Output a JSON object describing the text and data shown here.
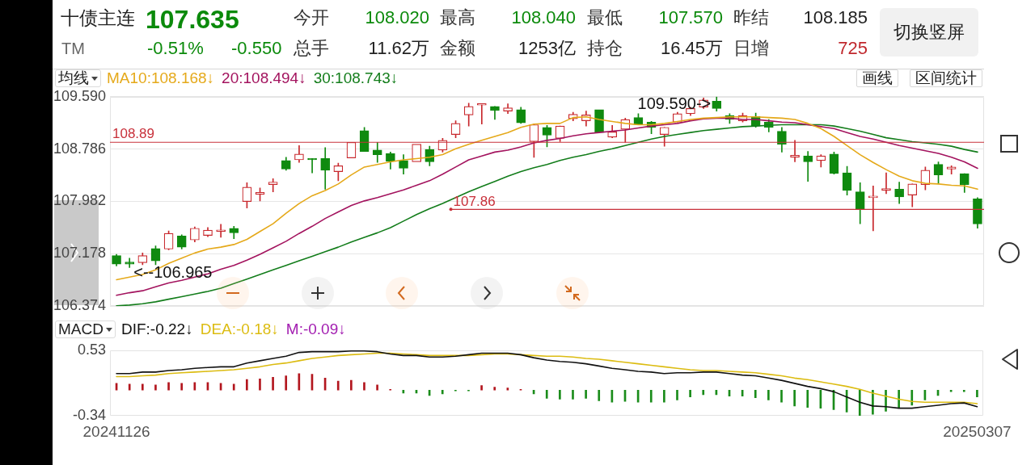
{
  "chart_data": [
    {
      "type": "other",
      "title": "十债主连",
      "annotations": [
        "107.635",
        "TM",
        "-0.51%",
        "-0.550",
        "今开",
        "108.020",
        "最高",
        "108.040",
        "最低",
        "107.570",
        "昨结",
        "108.185",
        "总手",
        "11.62万",
        "金额",
        "1253亿",
        "持仓",
        "16.45万",
        "日增",
        "725",
        "切换竖屏"
      ]
    },
    {
      "type": "candlestick",
      "categories": [
        "20241126",
        null,
        null,
        null,
        null,
        null,
        null,
        null,
        null,
        null,
        null,
        null,
        null,
        null,
        null,
        null,
        null,
        null,
        null,
        null,
        null,
        null,
        null,
        null,
        null,
        null,
        null,
        null,
        null,
        null,
        null,
        null,
        null,
        null,
        null,
        null,
        null,
        null,
        null,
        null,
        null,
        null,
        null,
        null,
        null,
        null,
        null,
        null,
        null,
        null,
        null,
        null,
        null,
        null,
        null,
        null,
        null,
        null,
        null,
        null,
        null,
        null,
        null,
        null,
        null,
        null,
        "20250307"
      ],
      "ohlc": [
        [
          107.15,
          107.17,
          106.99,
          107.02
        ],
        [
          107.05,
          107.11,
          106.965,
          107.02
        ],
        [
          107.04,
          107.19,
          107.01,
          107.15
        ],
        [
          107.26,
          107.3,
          107.01,
          107.07
        ],
        [
          107.25,
          107.53,
          107.24,
          107.49
        ],
        [
          107.45,
          107.47,
          107.25,
          107.28
        ],
        [
          107.39,
          107.59,
          107.36,
          107.57
        ],
        [
          107.46,
          107.58,
          107.44,
          107.54
        ],
        [
          107.52,
          107.63,
          107.43,
          107.53
        ],
        [
          107.57,
          107.6,
          107.41,
          107.5
        ],
        [
          107.98,
          108.27,
          107.88,
          108.2
        ],
        [
          108.09,
          108.19,
          107.99,
          108.12
        ],
        [
          108.24,
          108.33,
          108.13,
          108.28
        ],
        [
          108.61,
          108.66,
          108.46,
          108.48
        ],
        [
          108.62,
          108.84,
          108.58,
          108.71
        ],
        [
          108.64,
          108.64,
          108.42,
          108.62
        ],
        [
          108.64,
          108.81,
          108.17,
          108.46
        ],
        [
          108.44,
          108.57,
          108.3,
          108.53
        ],
        [
          108.65,
          108.89,
          108.65,
          108.89
        ],
        [
          109.07,
          109.12,
          108.75,
          108.75
        ],
        [
          108.77,
          108.89,
          108.58,
          108.7
        ],
        [
          108.72,
          108.74,
          108.48,
          108.6
        ],
        [
          108.61,
          108.7,
          108.4,
          108.49
        ],
        [
          108.59,
          108.86,
          108.59,
          108.86
        ],
        [
          108.78,
          108.83,
          108.53,
          108.59
        ],
        [
          108.77,
          108.95,
          108.74,
          108.92
        ],
        [
          109.01,
          109.22,
          108.96,
          109.18
        ],
        [
          109.31,
          109.49,
          109.14,
          109.44
        ],
        [
          109.46,
          109.47,
          109.17,
          109.47
        ],
        [
          109.44,
          109.44,
          109.24,
          109.38
        ],
        [
          109.37,
          109.48,
          109.33,
          109.42
        ],
        [
          109.39,
          109.43,
          109.18,
          109.19
        ],
        [
          108.9,
          109.17,
          108.66,
          109.16
        ],
        [
          109.12,
          109.15,
          108.82,
          109.0
        ],
        [
          108.95,
          109.14,
          108.9,
          109.14
        ],
        [
          109.25,
          109.35,
          109.22,
          109.32
        ],
        [
          109.22,
          109.37,
          109.14,
          109.31
        ],
        [
          109.39,
          109.39,
          109.04,
          109.04
        ],
        [
          108.97,
          109.15,
          108.96,
          109.05
        ],
        [
          109.09,
          109.26,
          108.89,
          109.24
        ],
        [
          109.27,
          109.33,
          109.16,
          109.16
        ],
        [
          109.2,
          109.21,
          109.02,
          109.12
        ],
        [
          109.01,
          109.12,
          108.83,
          109.12
        ],
        [
          109.2,
          109.35,
          109.2,
          109.33
        ],
        [
          109.33,
          109.43,
          109.3,
          109.41
        ],
        [
          109.43,
          109.57,
          109.41,
          109.54
        ],
        [
          109.52,
          109.59,
          109.37,
          109.41
        ],
        [
          109.3,
          109.33,
          109.18,
          109.24
        ],
        [
          109.22,
          109.34,
          109.2,
          109.3
        ],
        [
          109.29,
          109.34,
          109.12,
          109.14
        ],
        [
          109.2,
          109.24,
          109.05,
          109.12
        ],
        [
          109.06,
          109.12,
          108.74,
          108.86
        ],
        [
          108.66,
          108.92,
          108.59,
          108.69
        ],
        [
          108.68,
          108.75,
          108.29,
          108.59
        ],
        [
          108.61,
          108.7,
          108.51,
          108.68
        ],
        [
          108.71,
          108.74,
          108.4,
          108.41
        ],
        [
          108.42,
          108.52,
          108.08,
          108.15
        ],
        [
          108.13,
          108.27,
          107.64,
          107.86
        ],
        [
          108.04,
          108.22,
          107.53,
          108.06
        ],
        [
          108.15,
          108.42,
          108.1,
          108.18
        ],
        [
          108.17,
          108.28,
          107.95,
          108.05
        ],
        [
          108.08,
          108.25,
          107.9,
          108.25
        ],
        [
          108.24,
          108.51,
          108.16,
          108.46
        ],
        [
          108.55,
          108.59,
          108.25,
          108.39
        ],
        [
          108.48,
          108.53,
          108.4,
          108.51
        ],
        [
          108.41,
          108.41,
          108.12,
          108.24
        ],
        [
          108.02,
          108.04,
          107.57,
          107.635
        ]
      ],
      "colors": [
        "#0f8a0f",
        "#0f8a0f",
        "#c8282d",
        "#0f8a0f",
        "#c8282d",
        "#0f8a0f",
        "#c8282d",
        "#c8282d",
        "#c8282d",
        "#0f8a0f",
        "#c8282d",
        "#c8282d",
        "#c8282d",
        "#0f8a0f",
        "#c8282d",
        "#0f8a0f",
        "#0f8a0f",
        "#c8282d",
        "#c8282d",
        "#0f8a0f",
        "#0f8a0f",
        "#0f8a0f",
        "#0f8a0f",
        "#c8282d",
        "#0f8a0f",
        "#c8282d",
        "#c8282d",
        "#c8282d",
        "#c8282d",
        "#0f8a0f",
        "#c8282d",
        "#0f8a0f",
        "#c8282d",
        "#0f8a0f",
        "#c8282d",
        "#c8282d",
        "#c8282d",
        "#0f8a0f",
        "#c8282d",
        "#c8282d",
        "#0f8a0f",
        "#0f8a0f",
        "#c8282d",
        "#c8282d",
        "#c8282d",
        "#c8282d",
        "#0f8a0f",
        "#0f8a0f",
        "#c8282d",
        "#0f8a0f",
        "#0f8a0f",
        "#0f8a0f",
        "#c8282d",
        "#0f8a0f",
        "#c8282d",
        "#0f8a0f",
        "#0f8a0f",
        "#0f8a0f",
        "#c8282d",
        "#c8282d",
        "#0f8a0f",
        "#c8282d",
        "#c8282d",
        "#0f8a0f",
        "#c8282d",
        "#0f8a0f",
        "#0f8a0f"
      ],
      "series": [
        {
          "name": "MA10:108.168↓",
          "type": "line",
          "color": "#e5a91a",
          "values": [
            106.78,
            106.82,
            106.86,
            106.93,
            107.03,
            107.11,
            107.19,
            107.25,
            107.28,
            107.32,
            107.4,
            107.52,
            107.64,
            107.8,
            107.95,
            108.07,
            108.15,
            108.25,
            108.39,
            108.51,
            108.55,
            108.59,
            108.62,
            108.64,
            108.66,
            108.7,
            108.79,
            108.86,
            108.92,
            108.98,
            109.04,
            109.12,
            109.17,
            109.18,
            109.18,
            109.27,
            109.28,
            109.24,
            109.21,
            109.18,
            109.16,
            109.16,
            109.18,
            109.21,
            109.24,
            109.26,
            109.27,
            109.28,
            109.28,
            109.28,
            109.27,
            109.26,
            109.24,
            109.18,
            109.1,
            108.98,
            108.84,
            108.7,
            108.58,
            108.47,
            108.37,
            108.3,
            108.26,
            108.25,
            108.23,
            108.22,
            108.17
          ]
        },
        {
          "name": "20:108.494↓",
          "type": "line",
          "color": "#a3135e",
          "values": [
            106.54,
            106.58,
            106.61,
            106.67,
            106.73,
            106.77,
            106.82,
            106.87,
            106.94,
            107.0,
            107.08,
            107.17,
            107.27,
            107.37,
            107.49,
            107.6,
            107.72,
            107.82,
            107.92,
            107.99,
            108.04,
            108.1,
            108.16,
            108.23,
            108.3,
            108.4,
            108.51,
            108.62,
            108.68,
            108.74,
            108.77,
            108.82,
            108.88,
            108.92,
            108.95,
            108.99,
            109.02,
            109.04,
            109.06,
            109.08,
            109.11,
            109.14,
            109.16,
            109.18,
            109.22,
            109.25,
            109.26,
            109.26,
            109.24,
            109.24,
            109.22,
            109.2,
            109.19,
            109.16,
            109.13,
            109.1,
            109.04,
            108.98,
            108.94,
            108.89,
            108.84,
            108.8,
            108.76,
            108.72,
            108.66,
            108.59,
            108.49
          ]
        },
        {
          "name": "30:108.743↓",
          "type": "line",
          "color": "#137d1b",
          "values": [
            106.38,
            106.39,
            106.41,
            106.44,
            106.48,
            106.52,
            106.56,
            106.6,
            106.65,
            106.72,
            106.79,
            106.86,
            106.93,
            107.0,
            107.07,
            107.14,
            107.21,
            107.28,
            107.36,
            107.43,
            107.5,
            107.58,
            107.68,
            107.78,
            107.87,
            107.95,
            108.04,
            108.13,
            108.21,
            108.29,
            108.37,
            108.44,
            108.5,
            108.55,
            108.61,
            108.66,
            108.7,
            108.75,
            108.79,
            108.84,
            108.89,
            108.94,
            108.98,
            109.01,
            109.04,
            109.07,
            109.09,
            109.11,
            109.13,
            109.14,
            109.15,
            109.16,
            109.16,
            109.16,
            109.16,
            109.14,
            109.1,
            109.06,
            109.01,
            108.96,
            108.93,
            108.9,
            108.88,
            108.86,
            108.83,
            108.78,
            108.74
          ]
        }
      ],
      "legend_title": "均线",
      "legend": "top left",
      "ylim": [
        106.374,
        109.59
      ],
      "yticks": [
        106.374,
        107.178,
        107.982,
        108.786,
        {
          "value": 109.59,
          "label": "109.590"
        }
      ],
      "grid": "y",
      "tick_labels": "y",
      "marker": "none",
      "ref_lines": [
        {
          "axis": "y",
          "value": 108.89,
          "label": "108.89",
          "color": "#c8303a"
        },
        {
          "axis": "y",
          "value": 107.86,
          "label": "107.86",
          "color": "#c8303a"
        }
      ],
      "annotations": [
        "画线",
        "区间统计",
        "109.590->",
        "<--106.965"
      ]
    },
    {
      "type": "bar",
      "categories": [
        "20241126",
        null,
        null,
        null,
        null,
        null,
        null,
        null,
        null,
        null,
        null,
        null,
        null,
        null,
        null,
        null,
        null,
        null,
        null,
        null,
        null,
        null,
        null,
        null,
        null,
        null,
        null,
        null,
        null,
        null,
        null,
        null,
        null,
        null,
        null,
        null,
        null,
        null,
        null,
        null,
        null,
        null,
        null,
        null,
        null,
        null,
        null,
        null,
        null,
        null,
        null,
        null,
        null,
        null,
        null,
        null,
        null,
        null,
        null,
        null,
        null,
        null,
        null,
        null,
        null,
        null,
        "20250307"
      ],
      "series": [
        {
          "colors": [
            "#b3161e",
            "#b3161e",
            "#b3161e",
            "#b3161e",
            "#b3161e",
            "#b3161e",
            "#b3161e",
            "#b3161e",
            "#b3161e",
            "#b3161e",
            "#b3161e",
            "#b3161e",
            "#b3161e",
            "#b3161e",
            "#b3161e",
            "#b3161e",
            "#b3161e",
            "#b3161e",
            "#b3161e",
            "#b3161e",
            "#b3161e",
            "#b3161e",
            "#1a8c1a",
            "#1a8c1a",
            "#1a8c1a",
            "#1a8c1a",
            "#1a8c1a",
            "#1a8c1a",
            "#b3161e",
            "#b3161e",
            "#b3161e",
            "#b3161e",
            "#1a8c1a",
            "#1a8c1a",
            "#1a8c1a",
            "#1a8c1a",
            "#1a8c1a",
            "#1a8c1a",
            "#1a8c1a",
            "#1a8c1a",
            "#1a8c1a",
            "#1a8c1a",
            "#1a8c1a",
            "#1a8c1a",
            "#1a8c1a",
            "#1a8c1a",
            "#1a8c1a",
            "#1a8c1a",
            "#1a8c1a",
            "#1a8c1a",
            "#1a8c1a",
            "#1a8c1a",
            "#1a8c1a",
            "#1a8c1a",
            "#1a8c1a",
            "#1a8c1a",
            "#1a8c1a",
            "#1a8c1a",
            "#1a8c1a",
            "#1a8c1a",
            "#1a8c1a",
            "#1a8c1a",
            "#1a8c1a",
            "#1a8c1a",
            "#1a8c1a",
            "#1a8c1a",
            "#1a8c1a"
          ],
          "values": [
            0.09,
            0.08,
            0.08,
            0.07,
            0.1,
            0.09,
            0.1,
            0.1,
            0.09,
            0.08,
            0.14,
            0.15,
            0.17,
            0.19,
            0.22,
            0.21,
            0.16,
            0.12,
            0.13,
            0.1,
            0.07,
            0.01,
            -0.04,
            -0.04,
            -0.07,
            -0.05,
            -0.01,
            -0.01,
            0.06,
            0.04,
            0.03,
            0.01,
            -0.05,
            -0.11,
            -0.12,
            -0.12,
            -0.11,
            -0.14,
            -0.16,
            -0.15,
            -0.16,
            -0.16,
            -0.16,
            -0.13,
            -0.09,
            -0.06,
            -0.06,
            -0.08,
            -0.08,
            -0.1,
            -0.13,
            -0.16,
            -0.21,
            -0.23,
            -0.24,
            -0.26,
            -0.29,
            -0.34,
            -0.32,
            -0.28,
            -0.24,
            -0.2,
            -0.13,
            -0.07,
            -0.02,
            -0.02,
            -0.09
          ]
        },
        {
          "name": "DIF:-0.22↓",
          "type": "line",
          "color": "#111111",
          "values": [
            0.22,
            0.22,
            0.24,
            0.24,
            0.26,
            0.27,
            0.29,
            0.3,
            0.31,
            0.31,
            0.36,
            0.39,
            0.42,
            0.45,
            0.5,
            0.51,
            0.51,
            0.51,
            0.52,
            0.52,
            0.51,
            0.48,
            0.46,
            0.46,
            0.44,
            0.44,
            0.45,
            0.47,
            0.49,
            0.49,
            0.49,
            0.47,
            0.43,
            0.4,
            0.38,
            0.37,
            0.35,
            0.32,
            0.29,
            0.27,
            0.25,
            0.24,
            0.22,
            0.23,
            0.23,
            0.24,
            0.24,
            0.22,
            0.2,
            0.19,
            0.16,
            0.13,
            0.09,
            0.05,
            0.02,
            -0.02,
            -0.09,
            -0.16,
            -0.21,
            -0.22,
            -0.24,
            -0.24,
            -0.22,
            -0.2,
            -0.18,
            -0.17,
            -0.22
          ]
        },
        {
          "name": "DEA:-0.18↓",
          "type": "line",
          "color": "#dcbc12",
          "values": [
            0.18,
            0.18,
            0.19,
            0.2,
            0.22,
            0.23,
            0.24,
            0.25,
            0.26,
            0.27,
            0.29,
            0.31,
            0.34,
            0.36,
            0.39,
            0.42,
            0.44,
            0.46,
            0.47,
            0.48,
            0.49,
            0.49,
            0.48,
            0.47,
            0.46,
            0.46,
            0.46,
            0.46,
            0.47,
            0.48,
            0.48,
            0.47,
            0.46,
            0.45,
            0.45,
            0.44,
            0.42,
            0.41,
            0.39,
            0.37,
            0.35,
            0.33,
            0.31,
            0.29,
            0.27,
            0.26,
            0.26,
            0.25,
            0.24,
            0.23,
            0.21,
            0.19,
            0.16,
            0.14,
            0.11,
            0.08,
            0.05,
            0.01,
            -0.04,
            -0.08,
            -0.12,
            -0.15,
            -0.16,
            -0.16,
            -0.16,
            -0.16,
            -0.18
          ]
        }
      ],
      "legend_title": "MACD",
      "legend": "top left",
      "ylim": [
        -0.34,
        0.53
      ],
      "yticks": [
        -0.34,
        0.53
      ],
      "marker": "none",
      "annotations": [
        "M:-0.09↓"
      ]
    }
  ]
}
